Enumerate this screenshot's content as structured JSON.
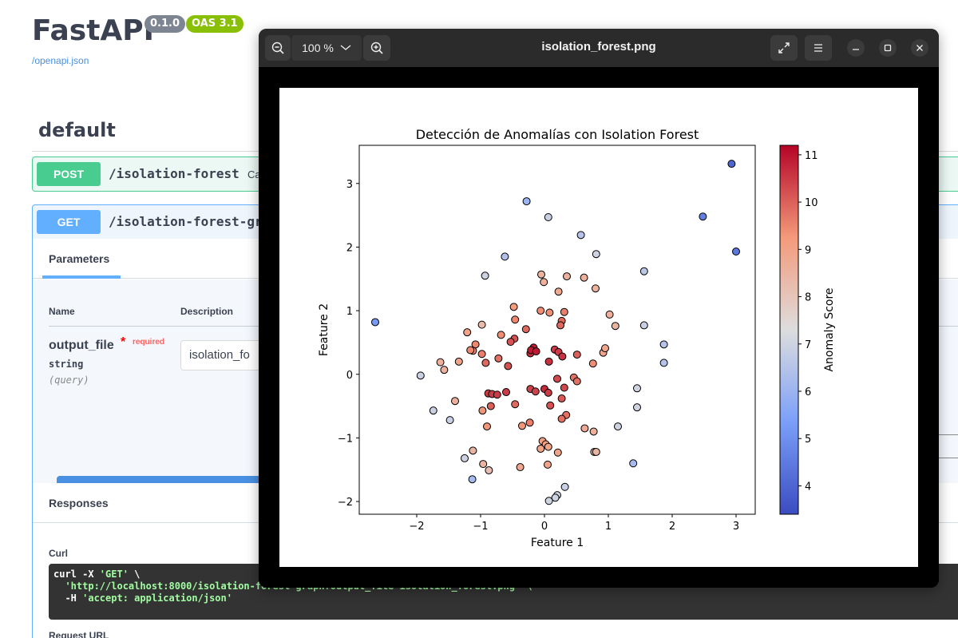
{
  "swagger": {
    "title": "FastAPI",
    "version": "0.1.0",
    "oas": "OAS 3.1",
    "openapi_link": "/openapi.json",
    "section": "default",
    "post": {
      "method": "POST",
      "path": "/isolation-forest",
      "summary": "Ca"
    },
    "get": {
      "method": "GET",
      "path": "/isolation-forest-gr",
      "parameters_tab": "Parameters",
      "col_name": "Name",
      "col_description": "Description",
      "param": {
        "name": "output_file",
        "star": "*",
        "required": "required",
        "type": "string",
        "in": "(query)",
        "value": "isolation_fo"
      },
      "responses_title": "Responses",
      "curl_label": "Curl",
      "curl_line1_a": "curl -X ",
      "curl_line1_b": "'GET'",
      "curl_line1_c": " \\",
      "curl_line2": "  'http://localhost:8000/isolation-forest-graph?output_file=isolation_forest.png' \\",
      "curl_line3_a": "  -H ",
      "curl_line3_b": "'accept: application/json'",
      "request_url_label": "Request URL"
    }
  },
  "viewer": {
    "title": "isolation_forest.png",
    "zoom": "100 %",
    "icons": {
      "zoom_out": "zoom-out-icon",
      "zoom_in": "zoom-in-icon",
      "dropdown": "chevron-down-icon",
      "fullscreen": "fullscreen-icon",
      "menu": "hamburger-menu-icon",
      "minimize": "minimize-icon",
      "maximize": "maximize-icon",
      "close": "close-icon"
    }
  },
  "chart_data": {
    "type": "scatter",
    "title": "Detección de Anomalías con Isolation Forest",
    "xlabel": "Feature 1",
    "ylabel": "Feature 2",
    "xlim": [
      -2.9,
      3.3
    ],
    "ylim": [
      -2.2,
      3.6
    ],
    "xticks": [
      -2,
      -1,
      0,
      1,
      2,
      3
    ],
    "yticks": [
      -2,
      -1,
      0,
      1,
      2,
      3
    ],
    "colorbar": {
      "label": "Anomaly Score",
      "range": [
        3.4,
        11.2
      ],
      "ticks": [
        4,
        5,
        6,
        7,
        8,
        9,
        10,
        11
      ],
      "colormap": "coolwarm"
    },
    "points": [
      {
        "x": 2.93,
        "y": 3.31,
        "score": 4.0
      },
      {
        "x": -0.28,
        "y": 2.72,
        "score": 6.0
      },
      {
        "x": 0.06,
        "y": 2.47,
        "score": 6.9
      },
      {
        "x": 2.48,
        "y": 2.48,
        "score": 4.6
      },
      {
        "x": 0.57,
        "y": 2.19,
        "score": 6.5
      },
      {
        "x": 3.0,
        "y": 1.93,
        "score": 4.4
      },
      {
        "x": -0.62,
        "y": 1.85,
        "score": 6.4
      },
      {
        "x": 0.81,
        "y": 1.89,
        "score": 7.0
      },
      {
        "x": 1.56,
        "y": 1.62,
        "score": 6.6
      },
      {
        "x": -0.93,
        "y": 1.55,
        "score": 7.0
      },
      {
        "x": -0.05,
        "y": 1.57,
        "score": 8.5
      },
      {
        "x": 0.35,
        "y": 1.54,
        "score": 8.6
      },
      {
        "x": -0.01,
        "y": 1.45,
        "score": 8.6
      },
      {
        "x": 0.62,
        "y": 1.52,
        "score": 8.6
      },
      {
        "x": 0.22,
        "y": 1.3,
        "score": 8.8
      },
      {
        "x": 0.8,
        "y": 1.35,
        "score": 8.5
      },
      {
        "x": -2.65,
        "y": 0.82,
        "score": 5.2
      },
      {
        "x": -0.48,
        "y": 1.06,
        "score": 9.2
      },
      {
        "x": -0.06,
        "y": 1.0,
        "score": 9.4
      },
      {
        "x": 0.08,
        "y": 0.97,
        "score": 9.4
      },
      {
        "x": 0.31,
        "y": 0.98,
        "score": 9.6
      },
      {
        "x": 1.02,
        "y": 0.94,
        "score": 8.6
      },
      {
        "x": -0.98,
        "y": 0.78,
        "score": 8.3
      },
      {
        "x": -0.46,
        "y": 0.86,
        "score": 9.5
      },
      {
        "x": 0.27,
        "y": 0.84,
        "score": 9.9
      },
      {
        "x": 0.25,
        "y": 0.77,
        "score": 9.9
      },
      {
        "x": 1.11,
        "y": 0.76,
        "score": 8.5
      },
      {
        "x": 1.56,
        "y": 0.77,
        "score": 6.9
      },
      {
        "x": -1.21,
        "y": 0.66,
        "score": 9.0
      },
      {
        "x": -0.68,
        "y": 0.62,
        "score": 9.4
      },
      {
        "x": -0.29,
        "y": 0.71,
        "score": 9.9
      },
      {
        "x": -0.47,
        "y": 0.56,
        "score": 10.2
      },
      {
        "x": -0.53,
        "y": 0.51,
        "score": 10.2
      },
      {
        "x": -1.08,
        "y": 0.47,
        "score": 9.5
      },
      {
        "x": -1.12,
        "y": 0.37,
        "score": 9.5
      },
      {
        "x": -1.16,
        "y": 0.38,
        "score": 9.5
      },
      {
        "x": -0.98,
        "y": 0.32,
        "score": 9.6
      },
      {
        "x": -0.22,
        "y": 0.33,
        "score": 10.7
      },
      {
        "x": -0.17,
        "y": 0.42,
        "score": 10.9
      },
      {
        "x": -0.21,
        "y": 0.38,
        "score": 10.9
      },
      {
        "x": -0.13,
        "y": 0.36,
        "score": 10.9
      },
      {
        "x": 0.16,
        "y": 0.39,
        "score": 10.5
      },
      {
        "x": 0.22,
        "y": 0.35,
        "score": 10.5
      },
      {
        "x": 0.28,
        "y": 0.28,
        "score": 10.6
      },
      {
        "x": 0.51,
        "y": 0.31,
        "score": 10.0
      },
      {
        "x": 0.92,
        "y": 0.34,
        "score": 8.9
      },
      {
        "x": 0.95,
        "y": 0.41,
        "score": 8.9
      },
      {
        "x": -0.72,
        "y": 0.25,
        "score": 9.8
      },
      {
        "x": -1.34,
        "y": 0.2,
        "score": 9.0
      },
      {
        "x": -1.63,
        "y": 0.19,
        "score": 8.6
      },
      {
        "x": -1.57,
        "y": 0.07,
        "score": 8.6
      },
      {
        "x": -0.92,
        "y": 0.18,
        "score": 9.9
      },
      {
        "x": -0.57,
        "y": 0.13,
        "score": 10.2
      },
      {
        "x": 0.07,
        "y": 0.2,
        "score": 10.6
      },
      {
        "x": 0.76,
        "y": 0.17,
        "score": 9.4
      },
      {
        "x": 0.2,
        "y": -0.07,
        "score": 10.3
      },
      {
        "x": 0.46,
        "y": -0.05,
        "score": 9.8
      },
      {
        "x": 0.51,
        "y": -0.11,
        "score": 9.8
      },
      {
        "x": -1.94,
        "y": -0.02,
        "score": 6.9
      },
      {
        "x": 0.31,
        "y": -0.21,
        "score": 10.3
      },
      {
        "x": -0.88,
        "y": -0.3,
        "score": 10.5
      },
      {
        "x": -0.82,
        "y": -0.31,
        "score": 10.5
      },
      {
        "x": -0.74,
        "y": -0.32,
        "score": 10.5
      },
      {
        "x": -0.6,
        "y": -0.28,
        "score": 10.5
      },
      {
        "x": -0.22,
        "y": -0.23,
        "score": 10.4
      },
      {
        "x": -0.14,
        "y": -0.27,
        "score": 10.4
      },
      {
        "x": 0.0,
        "y": -0.23,
        "score": 10.7
      },
      {
        "x": 0.06,
        "y": -0.29,
        "score": 10.5
      },
      {
        "x": 0.27,
        "y": -0.38,
        "score": 10.1
      },
      {
        "x": -1.4,
        "y": -0.42,
        "score": 8.6
      },
      {
        "x": -1.74,
        "y": -0.57,
        "score": 6.9
      },
      {
        "x": -0.84,
        "y": -0.5,
        "score": 10.0
      },
      {
        "x": -0.46,
        "y": -0.47,
        "score": 9.9
      },
      {
        "x": 0.09,
        "y": -0.49,
        "score": 10.2
      },
      {
        "x": -1.48,
        "y": -0.72,
        "score": 6.9
      },
      {
        "x": -0.97,
        "y": -0.57,
        "score": 9.3
      },
      {
        "x": 0.34,
        "y": -0.64,
        "score": 9.8
      },
      {
        "x": 0.27,
        "y": -0.7,
        "score": 9.8
      },
      {
        "x": -0.23,
        "y": -0.76,
        "score": 9.6
      },
      {
        "x": -0.35,
        "y": -0.81,
        "score": 9.3
      },
      {
        "x": -0.9,
        "y": -0.82,
        "score": 9.3
      },
      {
        "x": 0.63,
        "y": -0.85,
        "score": 8.8
      },
      {
        "x": 0.77,
        "y": -0.9,
        "score": 8.6
      },
      {
        "x": 1.15,
        "y": -0.82,
        "score": 7.0
      },
      {
        "x": 1.45,
        "y": -0.52,
        "score": 7.0
      },
      {
        "x": 1.45,
        "y": -0.22,
        "score": 7.0
      },
      {
        "x": -0.03,
        "y": -1.05,
        "score": 9.1
      },
      {
        "x": 0.02,
        "y": -1.1,
        "score": 9.1
      },
      {
        "x": -0.06,
        "y": -1.17,
        "score": 9.0
      },
      {
        "x": 0.06,
        "y": -1.14,
        "score": 9.0
      },
      {
        "x": 0.21,
        "y": -1.23,
        "score": 9.0
      },
      {
        "x": 0.78,
        "y": -1.22,
        "score": 8.5
      },
      {
        "x": 0.81,
        "y": -1.22,
        "score": 8.5
      },
      {
        "x": -1.12,
        "y": -1.2,
        "score": 8.5
      },
      {
        "x": -1.25,
        "y": -1.32,
        "score": 7.0
      },
      {
        "x": 0.05,
        "y": -1.42,
        "score": 9.0
      },
      {
        "x": -0.96,
        "y": -1.41,
        "score": 8.5
      },
      {
        "x": -0.38,
        "y": -1.46,
        "score": 8.8
      },
      {
        "x": -0.87,
        "y": -1.51,
        "score": 8.2
      },
      {
        "x": 1.39,
        "y": -1.4,
        "score": 6.2
      },
      {
        "x": -1.13,
        "y": -1.65,
        "score": 6.2
      },
      {
        "x": 0.32,
        "y": -1.77,
        "score": 6.9
      },
      {
        "x": 0.2,
        "y": -1.9,
        "score": 7.0
      },
      {
        "x": 0.17,
        "y": -1.94,
        "score": 7.0
      },
      {
        "x": 0.07,
        "y": -1.99,
        "score": 7.0
      },
      {
        "x": 1.87,
        "y": 0.47,
        "score": 6.5
      },
      {
        "x": 1.87,
        "y": 0.18,
        "score": 6.5
      }
    ]
  }
}
